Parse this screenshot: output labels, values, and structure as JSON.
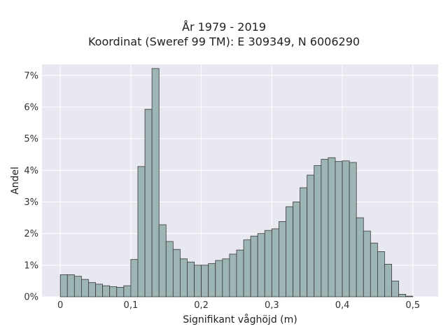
{
  "chart_data": {
    "type": "bar",
    "title": "År 1979 - 2019",
    "subtitle": "Koordinat (Sweref 99 TM): E 309349, N 6006290",
    "xlabel": "Signifikant våghöjd (m)",
    "ylabel": "Andel",
    "bin_width": 0.01,
    "x_start": 0.0,
    "values": [
      0.7,
      0.7,
      0.65,
      0.55,
      0.45,
      0.4,
      0.35,
      0.32,
      0.3,
      0.35,
      1.18,
      4.12,
      5.93,
      7.22,
      2.28,
      1.75,
      1.5,
      1.2,
      1.1,
      1.0,
      1.0,
      1.05,
      1.15,
      1.2,
      1.35,
      1.48,
      1.8,
      1.92,
      2.0,
      2.1,
      2.15,
      2.38,
      2.85,
      3.0,
      3.45,
      3.85,
      4.15,
      4.35,
      4.4,
      4.28,
      4.3,
      4.25,
      2.5,
      2.08,
      1.7,
      1.43,
      1.03,
      0.5,
      0.08,
      0.02
    ],
    "xlim": [
      -0.026,
      0.536
    ],
    "ylim": [
      0,
      7.35
    ],
    "xticks": [
      0,
      0.1,
      0.2,
      0.3,
      0.4,
      0.5
    ],
    "xtick_labels": [
      "0",
      "0,1",
      "0,2",
      "0,3",
      "0,4",
      "0,5"
    ],
    "yticks": [
      0,
      1,
      2,
      3,
      4,
      5,
      6,
      7
    ],
    "ytick_labels": [
      "0%",
      "1%",
      "2%",
      "3%",
      "4%",
      "5%",
      "6%",
      "7%"
    ],
    "grid": true,
    "colors": {
      "bar_fill": "#9db5b4",
      "bar_edge": "#3a3a3a",
      "plot_background": "#e8e8f0",
      "grid": "#ffffff"
    }
  }
}
